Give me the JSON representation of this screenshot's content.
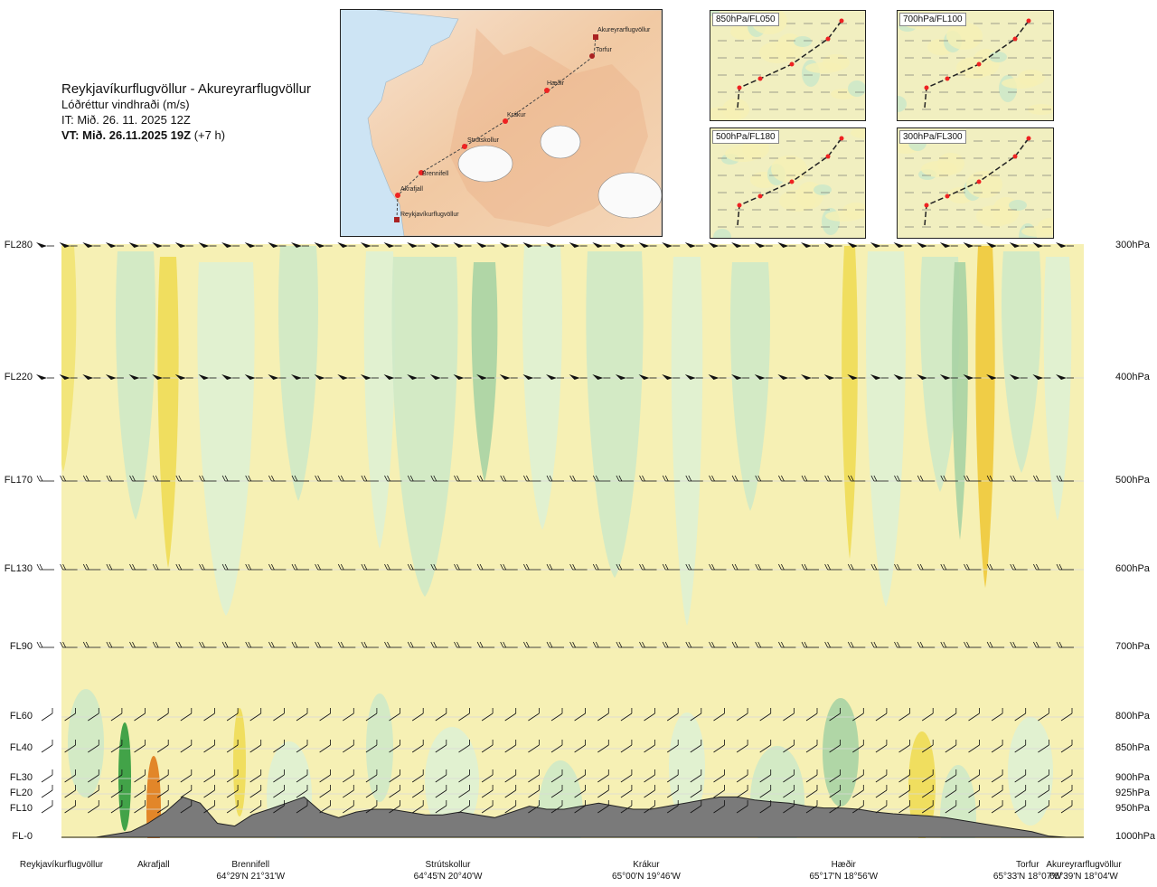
{
  "header": {
    "route": "Reykjavíkurflugvöllur - Akureyrarflugvöllur",
    "variable": "Lóðréttur vindhraði (m/s)",
    "it": "IT: Mið. 26. 11. 2025 12Z",
    "vt_bold": "VT: Mið. 26.11.2025 19Z",
    "vt_extra": "(+7 h)"
  },
  "route_map": {
    "waypoints": [
      {
        "name": "Akureyrarflugvöllur"
      },
      {
        "name": "Torfur"
      },
      {
        "name": "Hæðir"
      },
      {
        "name": "Krákur"
      },
      {
        "name": "Strútskollur"
      },
      {
        "name": "Brennifell"
      },
      {
        "name": "Akrafjall"
      },
      {
        "name": "Reykjavíkurflugvöllur"
      }
    ]
  },
  "mini_maps": [
    {
      "label": "850hPa/FL050"
    },
    {
      "label": "700hPa/FL100"
    },
    {
      "label": "500hPa/FL180"
    },
    {
      "label": "300hPa/FL300"
    }
  ],
  "chart_data": {
    "type": "heatmap",
    "title": "Lóðréttur vindhraði (m/s)",
    "levels": [
      {
        "fl": "FL280",
        "hpa": "300hPa",
        "y_pa": 300
      },
      {
        "fl": "FL220",
        "hpa": "400hPa",
        "y_pa": 400
      },
      {
        "fl": "FL170",
        "hpa": "500hPa",
        "y_pa": 500
      },
      {
        "fl": "FL130",
        "hpa": "600hPa",
        "y_pa": 600
      },
      {
        "fl": "FL90",
        "hpa": "700hPa",
        "y_pa": 700
      },
      {
        "fl": "FL60",
        "hpa": "800hPa",
        "y_pa": 800
      },
      {
        "fl": "FL40",
        "hpa": "850hPa",
        "y_pa": 850
      },
      {
        "fl": "FL30",
        "hpa": "900hPa",
        "y_pa": 900
      },
      {
        "fl": "FL20",
        "hpa": "925hPa",
        "y_pa": 925
      },
      {
        "fl": "FL10",
        "hpa": "950hPa",
        "y_pa": 950
      },
      {
        "fl": "FL-0",
        "hpa": "1000hPa",
        "y_pa": 1000
      }
    ],
    "ylim_hpa": [
      1000,
      300
    ],
    "locations": [
      {
        "name": "Reykjavíkurflugvöllur",
        "coord": "",
        "frac": 0.0
      },
      {
        "name": "Akrafjall",
        "coord": "",
        "frac": 0.09
      },
      {
        "name": "Brennifell",
        "coord": "64°29'N 21°31'W",
        "frac": 0.185
      },
      {
        "name": "Strútskollur",
        "coord": "64°45'N 20°40'W",
        "frac": 0.378
      },
      {
        "name": "Krákur",
        "coord": "65°00'N 19°46'W",
        "frac": 0.572
      },
      {
        "name": "Hæðir",
        "coord": "65°17'N 18°56'W",
        "frac": 0.765
      },
      {
        "name": "Torfur",
        "coord": "65°33'N 18°07'W",
        "frac": 0.945
      },
      {
        "name": "Akureyrarflugvöllur",
        "coord": "65°39'N 18°04'W",
        "frac": 1.0
      }
    ],
    "terrain_top_hpa": [
      1000,
      1000,
      1000,
      995,
      990,
      975,
      955,
      930,
      940,
      975,
      980,
      960,
      950,
      940,
      930,
      955,
      965,
      955,
      950,
      950,
      955,
      960,
      960,
      955,
      960,
      965,
      955,
      945,
      950,
      950,
      945,
      940,
      945,
      950,
      950,
      945,
      940,
      935,
      930,
      930,
      935,
      938,
      940,
      945,
      948,
      948,
      950,
      955,
      958,
      960,
      962,
      965,
      970,
      975,
      980,
      985,
      990,
      998,
      1000,
      1000
    ]
  }
}
